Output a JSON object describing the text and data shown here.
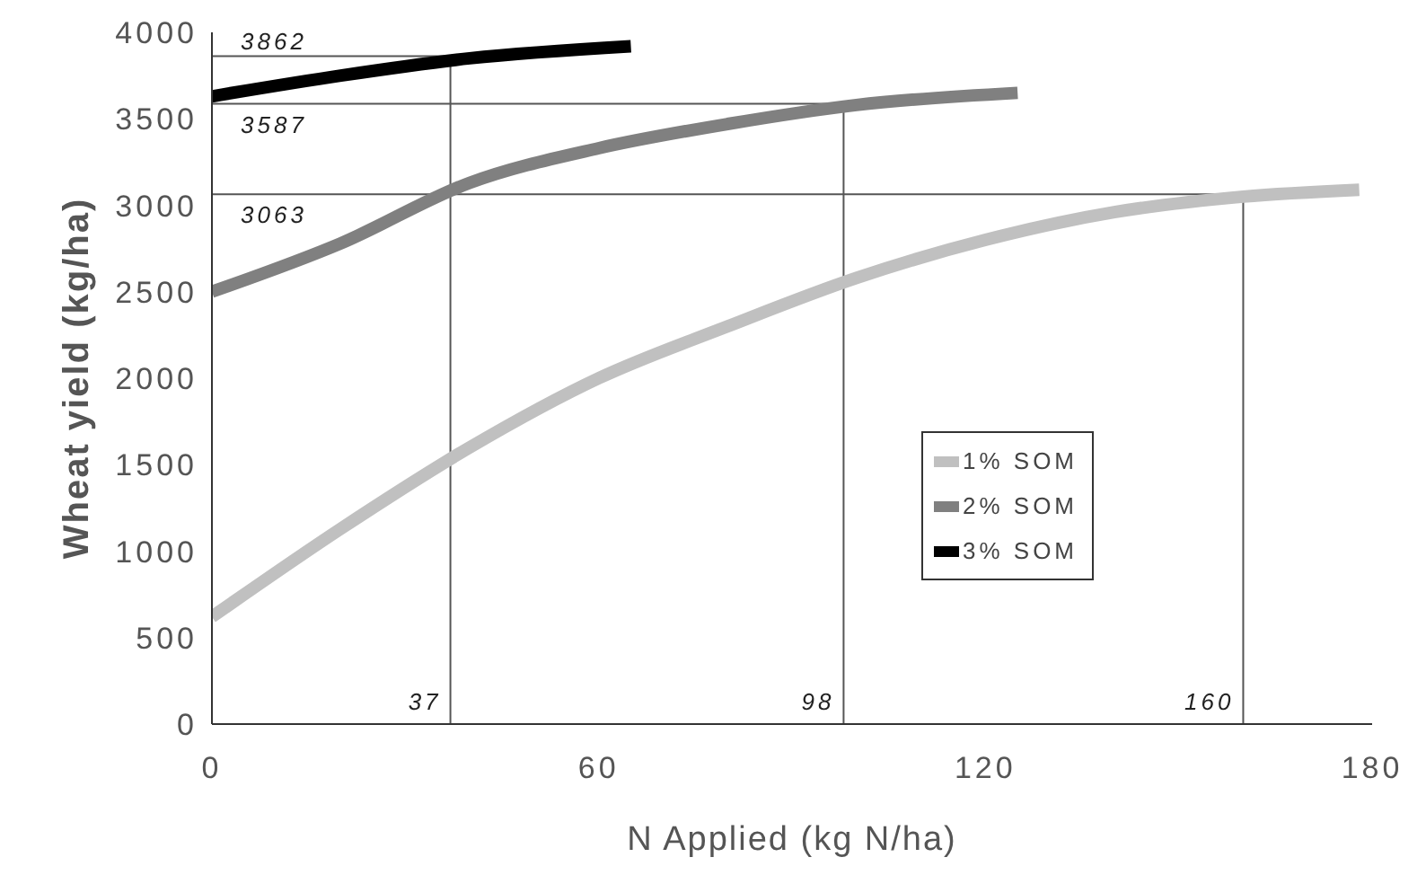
{
  "chart_data": {
    "type": "line",
    "xlabel": "N Applied (kg N/ha)",
    "ylabel": "Wheat yield (kg/ha)",
    "xlim": [
      0,
      180
    ],
    "xticks": [
      0,
      60,
      120,
      180
    ],
    "ylim": [
      0,
      4000
    ],
    "yticks": [
      0,
      500,
      1000,
      1500,
      2000,
      2500,
      3000,
      3500,
      4000
    ],
    "grid": false,
    "legend": "right",
    "marker": "none",
    "line_style": "solid",
    "series": [
      {
        "name": "1% SOM",
        "color": "#c0c0c0",
        "x": [
          0,
          20,
          40,
          60,
          80,
          100,
          120,
          140,
          160,
          178
        ],
        "values": [
          620,
          1130,
          1600,
          2000,
          2300,
          2580,
          2800,
          2960,
          3050,
          3090
        ]
      },
      {
        "name": "2% SOM",
        "color": "#808080",
        "x": [
          0,
          20,
          40,
          60,
          80,
          100,
          125
        ],
        "values": [
          2500,
          2780,
          3130,
          3330,
          3470,
          3580,
          3650
        ]
      },
      {
        "name": "3% SOM",
        "color": "#000000",
        "x": [
          0,
          20,
          40,
          65
        ],
        "values": [
          3630,
          3750,
          3850,
          3920
        ]
      }
    ],
    "ref_lines": [
      {
        "axis": "y",
        "value": 3862,
        "label": "3862"
      },
      {
        "axis": "y",
        "value": 3587,
        "label": "3587"
      },
      {
        "axis": "y",
        "value": 3063,
        "label": "3063"
      },
      {
        "axis": "x",
        "value": 37,
        "label": "37"
      },
      {
        "axis": "x",
        "value": 98,
        "label": "98"
      },
      {
        "axis": "x",
        "value": 160,
        "label": "160"
      }
    ]
  }
}
